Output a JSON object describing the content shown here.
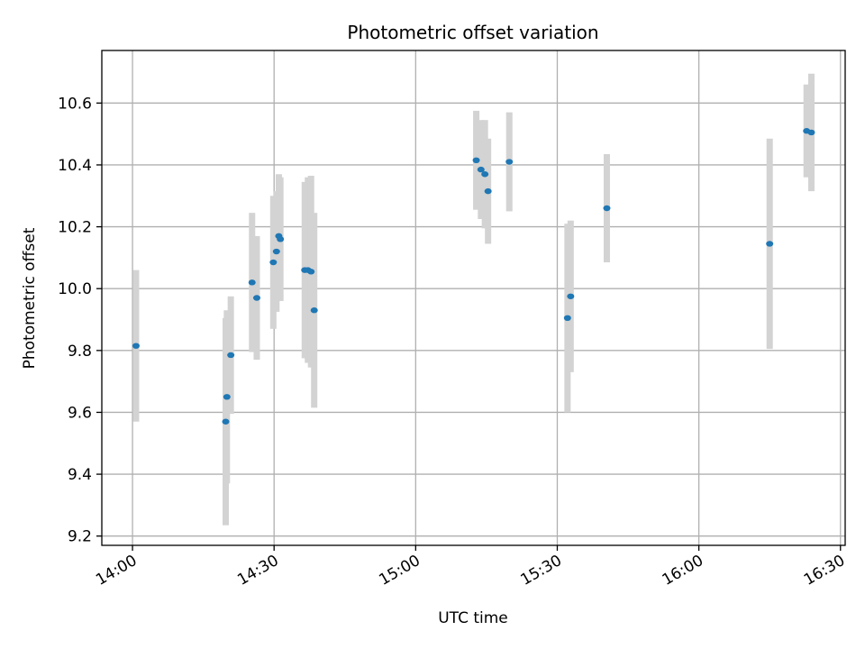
{
  "chart_data": {
    "type": "scatter",
    "title": "Photometric offset variation",
    "xlabel": "UTC time",
    "ylabel": "Photometric offset",
    "x_tick_labels": [
      "14:00",
      "14:30",
      "15:00",
      "15:30",
      "16:00",
      "16:30"
    ],
    "x_tick_minutes": [
      0,
      30,
      60,
      90,
      120,
      150
    ],
    "xlim": [
      "13:53:30",
      "16:31:00"
    ],
    "y_ticks": [
      9.2,
      9.4,
      9.6,
      9.8,
      10.0,
      10.2,
      10.4,
      10.6
    ],
    "y_tick_labels": [
      "9.2",
      "9.4",
      "9.6",
      "9.8",
      "10.0",
      "10.2",
      "10.4",
      "10.6"
    ],
    "ylim": [
      9.17,
      10.77
    ],
    "grid": true,
    "point_color": "#1f77b4",
    "errorbar_color": "#d3d3d3",
    "points": [
      {
        "time": "14:00:45",
        "y": 9.815,
        "err": 0.245
      },
      {
        "time": "14:19:45",
        "y": 9.57,
        "err": 0.335
      },
      {
        "time": "14:20:00",
        "y": 9.65,
        "err": 0.28
      },
      {
        "time": "14:20:50",
        "y": 9.785,
        "err": 0.19
      },
      {
        "time": "14:25:20",
        "y": 10.02,
        "err": 0.225
      },
      {
        "time": "14:26:20",
        "y": 9.97,
        "err": 0.2
      },
      {
        "time": "14:29:50",
        "y": 10.085,
        "err": 0.215
      },
      {
        "time": "14:30:30",
        "y": 10.12,
        "err": 0.195
      },
      {
        "time": "14:31:00",
        "y": 10.17,
        "err": 0.2
      },
      {
        "time": "14:31:20",
        "y": 10.16,
        "err": 0.2
      },
      {
        "time": "14:36:30",
        "y": 10.06,
        "err": 0.285
      },
      {
        "time": "14:37:10",
        "y": 10.06,
        "err": 0.3
      },
      {
        "time": "14:37:50",
        "y": 10.055,
        "err": 0.31
      },
      {
        "time": "14:38:30",
        "y": 9.93,
        "err": 0.315
      },
      {
        "time": "15:12:50",
        "y": 10.415,
        "err": 0.16
      },
      {
        "time": "15:13:50",
        "y": 10.385,
        "err": 0.16
      },
      {
        "time": "15:14:40",
        "y": 10.37,
        "err": 0.175
      },
      {
        "time": "15:15:20",
        "y": 10.315,
        "err": 0.17
      },
      {
        "time": "15:19:50",
        "y": 10.41,
        "err": 0.16
      },
      {
        "time": "15:32:10",
        "y": 9.905,
        "err": 0.305
      },
      {
        "time": "15:32:50",
        "y": 9.975,
        "err": 0.245
      },
      {
        "time": "15:40:30",
        "y": 10.26,
        "err": 0.175
      },
      {
        "time": "16:15:00",
        "y": 10.145,
        "err": 0.34
      },
      {
        "time": "16:22:50",
        "y": 10.51,
        "err": 0.15
      },
      {
        "time": "16:23:50",
        "y": 10.505,
        "err": 0.19
      }
    ]
  }
}
